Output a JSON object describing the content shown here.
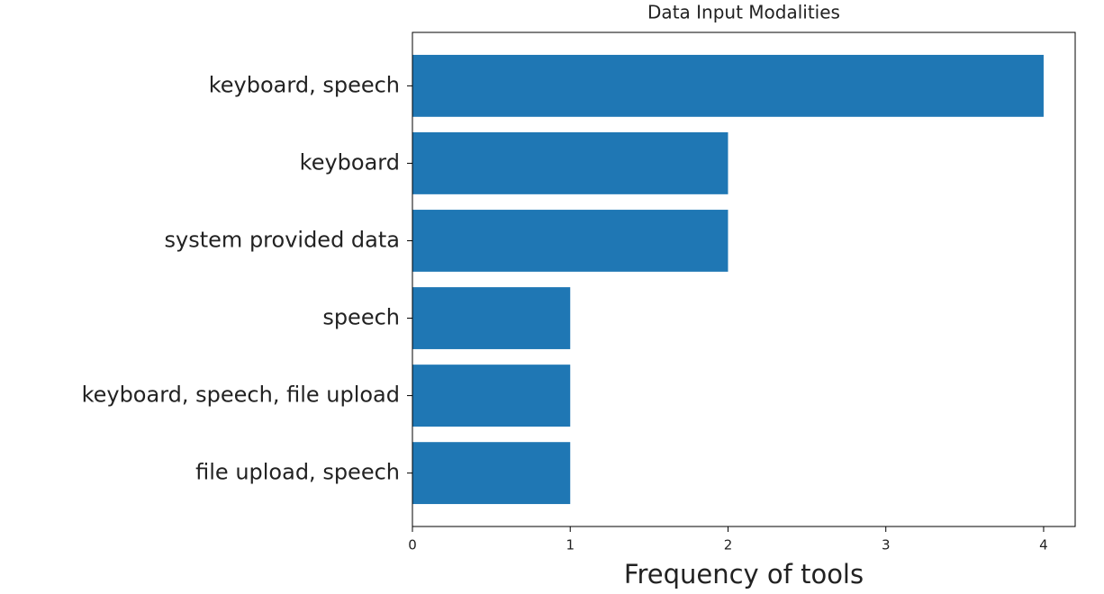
{
  "chart_data": {
    "type": "barh",
    "title": "Data Input Modalities",
    "xlabel": "Frequency of tools",
    "categories": [
      "keyboard, speech",
      "keyboard",
      "system provided data",
      "speech",
      "keyboard, speech, file upload",
      "file upload, speech"
    ],
    "values": [
      4,
      2,
      2,
      1,
      1,
      1
    ],
    "color": "#1f77b4",
    "xlim": [
      0,
      4.2
    ],
    "xticks": [
      0,
      1,
      2,
      3,
      4
    ],
    "grid": false
  }
}
